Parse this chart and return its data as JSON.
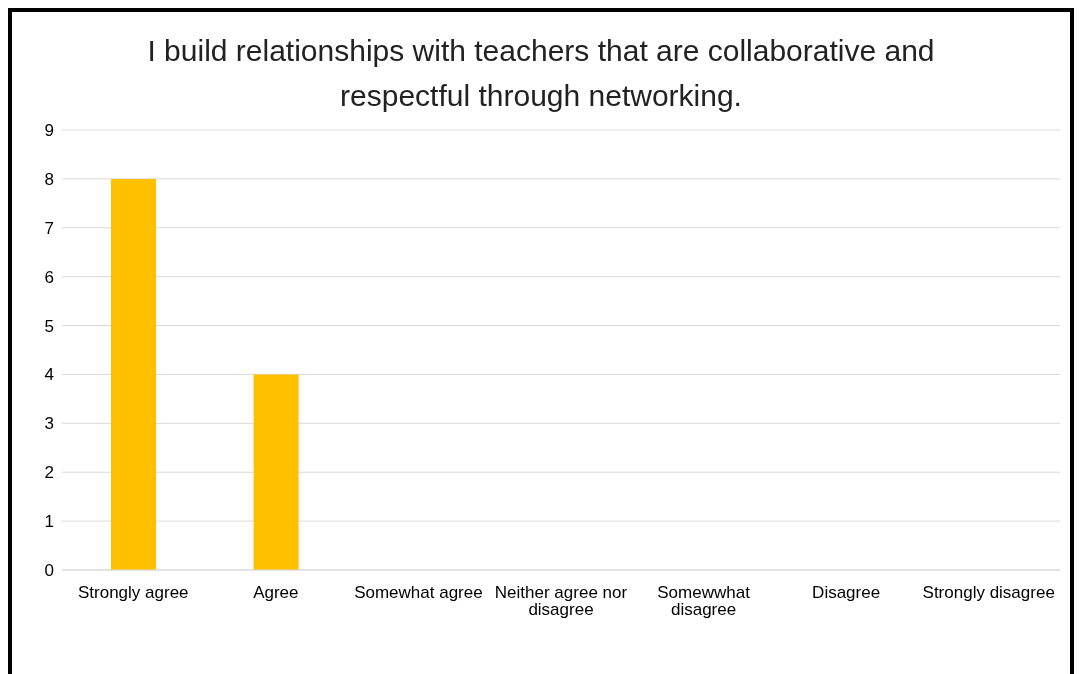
{
  "chart_data": {
    "type": "bar",
    "title": "I build relationships with teachers that are collaborative and respectful through networking.",
    "categories": [
      "Strongly agree",
      "Agree",
      "Somewhat agree",
      "Neither agree nor disagree",
      "Somewwhat disagree",
      "Disagree",
      "Strongly disagree"
    ],
    "values": [
      8,
      4,
      0,
      0,
      0,
      0,
      0
    ],
    "color": "#ffc000",
    "ylim": [
      0,
      9
    ],
    "yticks": [
      0,
      1,
      2,
      3,
      4,
      5,
      6,
      7,
      8,
      9
    ],
    "grid": "y",
    "legend": false
  }
}
